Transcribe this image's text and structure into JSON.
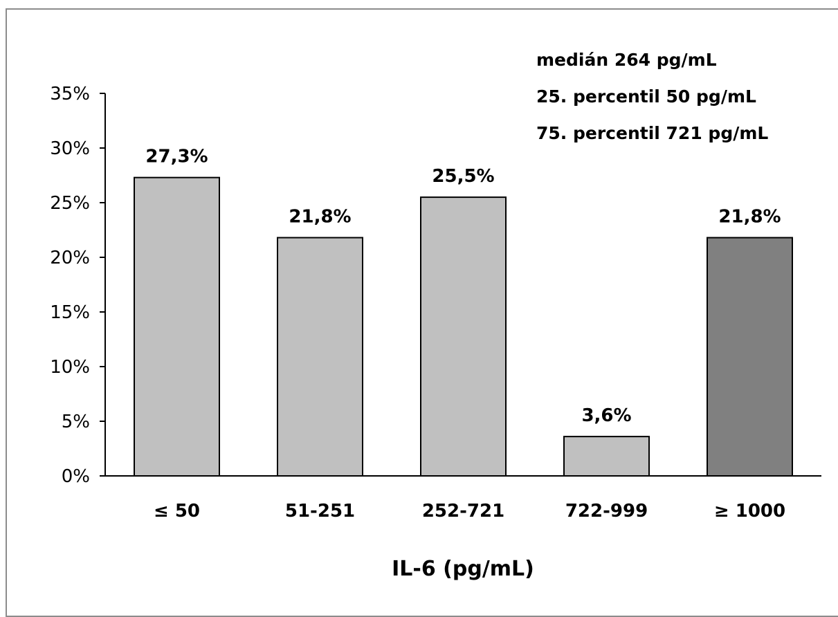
{
  "chart_data": {
    "type": "bar",
    "title": "",
    "xlabel": "IL-6 (pg/mL)",
    "ylabel": "",
    "categories": [
      "≤ 50",
      "51-251",
      "252-721",
      "722-999",
      "≥ 1000"
    ],
    "values": [
      27.3,
      21.8,
      25.5,
      3.6,
      21.8
    ],
    "data_labels": [
      "27,3%",
      "21,8%",
      "25,5%",
      "3,6%",
      "21,8%"
    ],
    "bar_colors": [
      "#c0c0c0",
      "#c0c0c0",
      "#c0c0c0",
      "#c0c0c0",
      "#808080"
    ],
    "ylim": [
      0,
      35
    ],
    "yticks": [
      {
        "value": 0,
        "label": "0%"
      },
      {
        "value": 5,
        "label": "5%"
      },
      {
        "value": 10,
        "label": "10%"
      },
      {
        "value": 15,
        "label": "15%"
      },
      {
        "value": 20,
        "label": "20%"
      },
      {
        "value": 25,
        "label": "25%"
      },
      {
        "value": 30,
        "label": "30%"
      },
      {
        "value": 35,
        "label": "35%"
      }
    ],
    "annotations": [
      "medián 264 pg/mL",
      "25. percentil 50 pg/mL",
      "75. percentil 721 pg/mL"
    ],
    "grid": false,
    "legend": "none"
  }
}
